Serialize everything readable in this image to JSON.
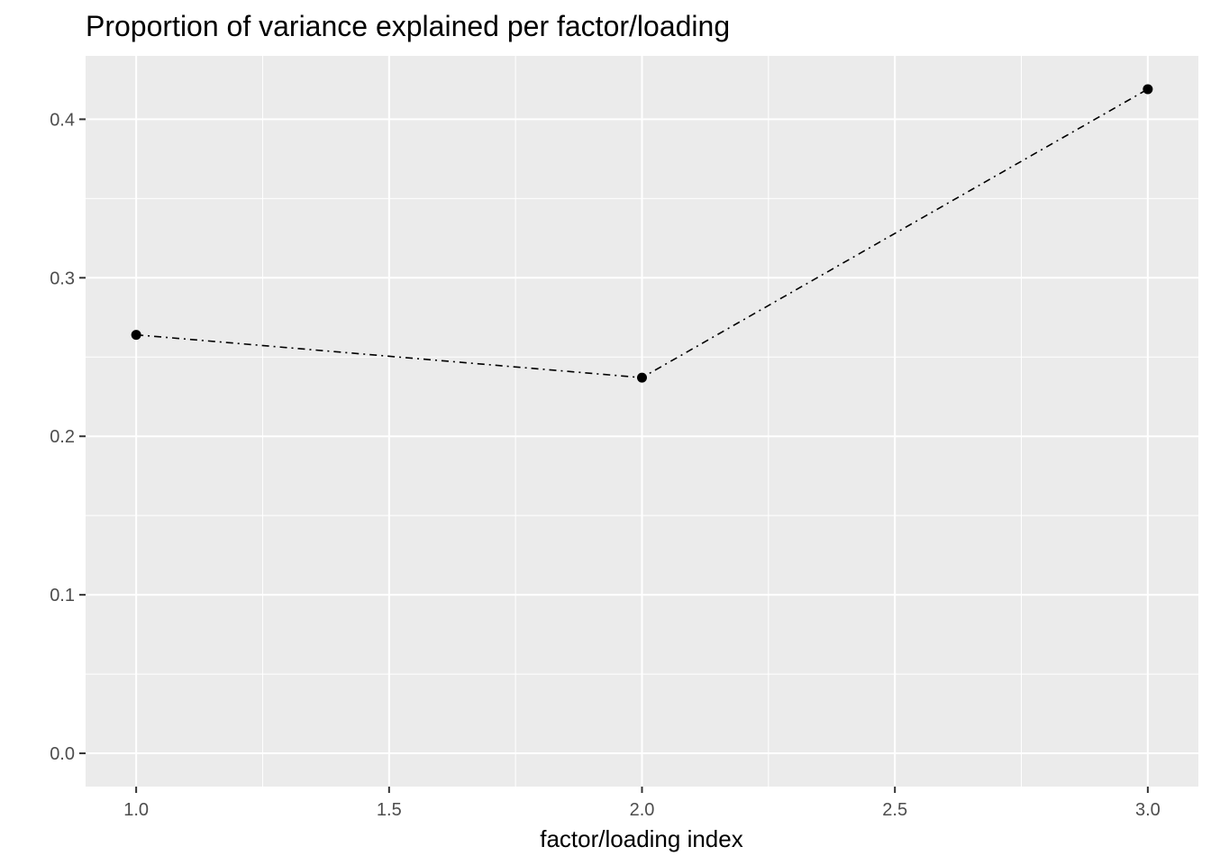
{
  "chart_data": {
    "type": "line",
    "title": "Proportion of variance explained per factor/loading",
    "xlabel": "factor/loading index",
    "ylabel": "",
    "x": [
      1,
      2,
      3
    ],
    "series": [
      {
        "values": [
          0.264,
          0.237,
          0.419
        ]
      }
    ],
    "xlim": [
      0.9,
      3.1
    ],
    "ylim": [
      -0.021,
      0.44
    ],
    "xticks": [
      1.0,
      1.5,
      2.0,
      2.5,
      3.0
    ],
    "xtick_labels": [
      "1.0",
      "1.5",
      "2.0",
      "2.5",
      "3.0"
    ],
    "yticks": [
      0.0,
      0.1,
      0.2,
      0.3,
      0.4
    ],
    "ytick_labels": [
      "0.0",
      "0.1",
      "0.2",
      "0.3",
      "0.4"
    ],
    "grid": true,
    "line_style": "dotdash",
    "colors": {
      "panel": "#ebebeb",
      "grid": "#ffffff",
      "line": "#000000",
      "points": "#000000"
    }
  }
}
